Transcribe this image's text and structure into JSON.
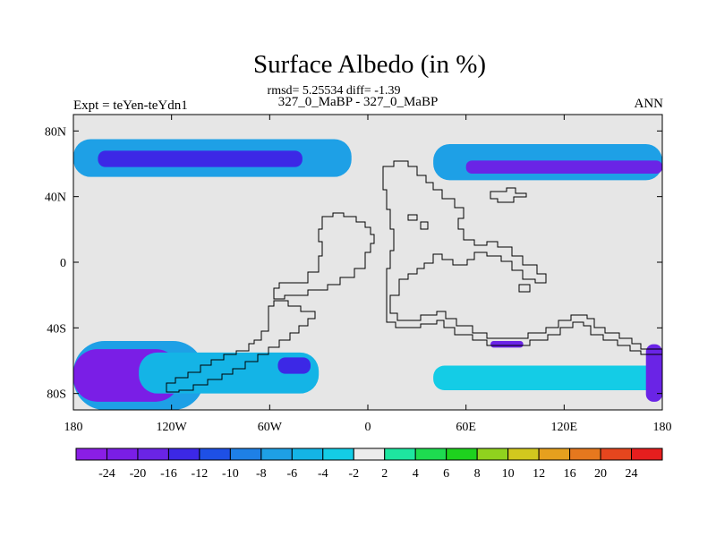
{
  "chart_data": {
    "type": "heatmap",
    "title": "Surface Albedo (in %)",
    "stats_line": "rmsd= 5.25534 diff= -1.39",
    "subtitle": "327_0_MaBP - 327_0_MaBP",
    "experiment_label": "Expt = teYen-teYdn1",
    "season_label": "ANN",
    "x_axis": {
      "ticks": [
        -180,
        -120,
        -60,
        0,
        60,
        120,
        180
      ],
      "tick_labels": [
        "180",
        "120W",
        "60W",
        "0",
        "60E",
        "120E",
        "180"
      ],
      "range": [
        -180,
        180
      ]
    },
    "y_axis": {
      "ticks": [
        80,
        40,
        0,
        -40,
        -80
      ],
      "tick_labels": [
        "80N",
        "40N",
        "0",
        "40S",
        "80S"
      ],
      "range": [
        -90,
        90
      ]
    },
    "colorbar": {
      "labels": [
        "-24",
        "-20",
        "-16",
        "-12",
        "-10",
        "-8",
        "-6",
        "-4",
        "-2",
        "2",
        "4",
        "6",
        "8",
        "10",
        "12",
        "16",
        "20",
        "24"
      ],
      "colors": [
        "#8a1ee6",
        "#7a1ee6",
        "#6a24e6",
        "#3c28e6",
        "#1e50e6",
        "#1e80e6",
        "#1ea0e6",
        "#14b4e6",
        "#14cce6",
        "#ececec",
        "#1ee6a0",
        "#1edc50",
        "#1ed21e",
        "#90d21e",
        "#d2c81e",
        "#e6a01e",
        "#e6781e",
        "#e6461e",
        "#e61e1e"
      ]
    },
    "background_color": "#e6e6e6",
    "regions": [
      {
        "name": "northern-band-west",
        "value": -8,
        "lon": [
          -180,
          -10
        ],
        "lat": [
          52,
          75
        ]
      },
      {
        "name": "northern-band-west-core",
        "value": -16,
        "lon": [
          -165,
          -40
        ],
        "lat": [
          58,
          68
        ]
      },
      {
        "name": "northern-band-east",
        "value": -8,
        "lon": [
          40,
          180
        ],
        "lat": [
          50,
          72
        ]
      },
      {
        "name": "northern-band-east-core",
        "value": -20,
        "lon": [
          60,
          180
        ],
        "lat": [
          54,
          62
        ]
      },
      {
        "name": "southern-band-west",
        "value": -8,
        "lon": [
          -180,
          -100
        ],
        "lat": [
          -90,
          -48
        ]
      },
      {
        "name": "southern-band-west-core",
        "value": -24,
        "lon": [
          -180,
          -115
        ],
        "lat": [
          -85,
          -53
        ]
      },
      {
        "name": "southern-strip-west",
        "value": -6,
        "lon": [
          -140,
          -30
        ],
        "lat": [
          -80,
          -55
        ]
      },
      {
        "name": "southern-strip-core",
        "value": -16,
        "lon": [
          -55,
          -35
        ],
        "lat": [
          -68,
          -58
        ]
      },
      {
        "name": "southern-band-east",
        "value": -4,
        "lon": [
          40,
          180
        ],
        "lat": [
          -78,
          -63
        ]
      },
      {
        "name": "southern-band-east-core",
        "value": -20,
        "lon": [
          170,
          180
        ],
        "lat": [
          -85,
          -50
        ]
      },
      {
        "name": "southern-small-patch",
        "value": -20,
        "lon": [
          75,
          95
        ],
        "lat": [
          -48,
          -52
        ]
      }
    ]
  }
}
